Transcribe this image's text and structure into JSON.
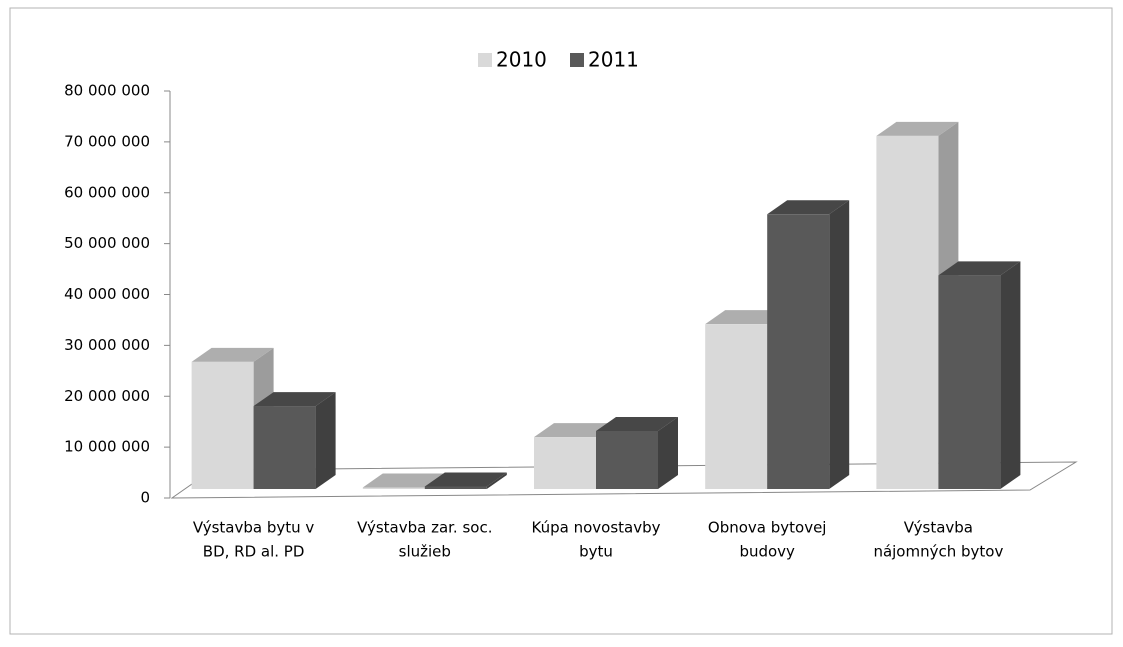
{
  "chart_data": {
    "type": "bar3d",
    "categories": [
      [
        "Výstavba bytu v",
        "BD, RD al. PD"
      ],
      [
        "Výstavba zar. soc.",
        "služieb"
      ],
      [
        "Kúpa novostavby",
        "bytu"
      ],
      [
        "Obnova bytovej",
        "budovy"
      ],
      [
        "Výstavba",
        "nájomných bytov"
      ]
    ],
    "series": [
      {
        "name": "2010",
        "color": "#d9d9d9",
        "values": [
          25000000,
          300000,
          10200000,
          32400000,
          69400000
        ]
      },
      {
        "name": "2011",
        "color": "#595959",
        "values": [
          16300000,
          500000,
          11400000,
          54000000,
          42000000
        ]
      }
    ],
    "ylim": [
      0,
      80000000
    ],
    "yticks": [
      0,
      {
        "value": 10000000,
        "label": "10 000 000"
      },
      {
        "value": 20000000,
        "label": "20 000 000"
      },
      {
        "value": 30000000,
        "label": "30 000 000"
      },
      {
        "value": 40000000,
        "label": "40 000 000"
      },
      {
        "value": 50000000,
        "label": "50 000 000"
      },
      {
        "value": 60000000,
        "label": "60 000 000"
      },
      {
        "value": 70000000,
        "label": "70 000 000"
      },
      {
        "value": 80000000,
        "label": "80 000 000"
      }
    ],
    "legend": "top"
  }
}
